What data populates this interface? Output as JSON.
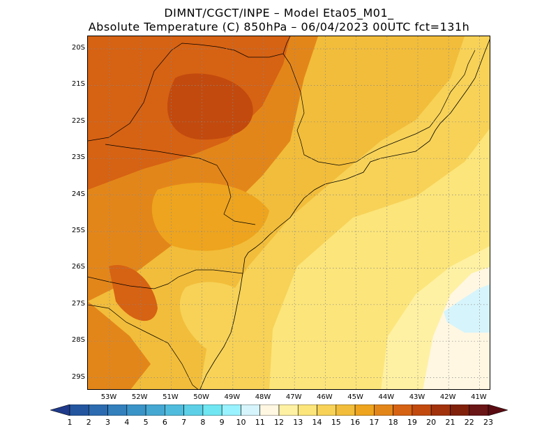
{
  "title": {
    "line1": "DIMNT/CGCT/INPE –  Model Eta05_M01_",
    "line2": "Absolute Temperature (C) 850hPa –  06/04/2023 00UTC fct=131h"
  },
  "map": {
    "lat_labels": [
      "20S",
      "21S",
      "22S",
      "23S",
      "24S",
      "25S",
      "26S",
      "27S",
      "28S",
      "29S"
    ],
    "lon_labels": [
      "53W",
      "52W",
      "51W",
      "50W",
      "49W",
      "48W",
      "47W",
      "46W",
      "45W",
      "44W",
      "43W",
      "42W",
      "41W"
    ],
    "gridlines": "dotted",
    "region_values": {
      "west_interior_max": 19,
      "central_interior": 18,
      "south_interior": 16,
      "coastal_east": 14,
      "offshore_south": 13,
      "offshore_southeast_min": 11
    }
  },
  "colorbar": {
    "labels": [
      "1",
      "2",
      "3",
      "4",
      "5",
      "6",
      "7",
      "8",
      "9",
      "10",
      "11",
      "12",
      "13",
      "14",
      "15",
      "16",
      "17",
      "18",
      "19",
      "20",
      "21",
      "22",
      "23"
    ],
    "colors": [
      "#1f3a8a",
      "#2456a0",
      "#2c6bb0",
      "#3380bd",
      "#3b94c8",
      "#45a8d3",
      "#50bcdd",
      "#5dd0e7",
      "#70e6f2",
      "#99f2ff",
      "#d6f4fb",
      "#fff7e2",
      "#fff1a3",
      "#fce57a",
      "#f7d257",
      "#f2bd3a",
      "#eea41e",
      "#e3861a",
      "#d66213",
      "#c24a0e",
      "#a2320b",
      "#80200a",
      "#6a1516",
      "#5a0c12"
    ]
  }
}
